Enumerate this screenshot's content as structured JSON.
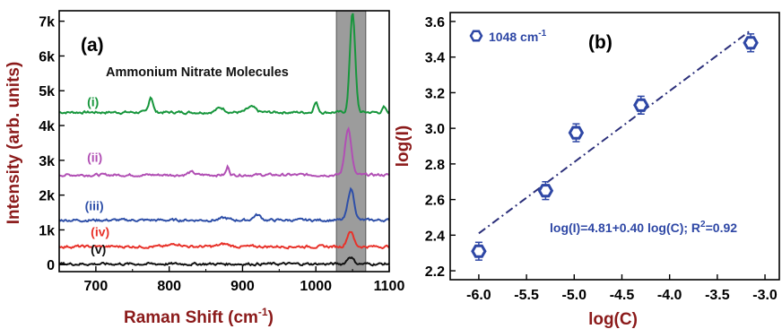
{
  "chart_data": [
    {
      "type": "line",
      "panel_label": "(a)",
      "annotation": "Ammonium Nitrate Molecules",
      "xlabel": "Raman Shift (cm",
      "xlabel_sup": "-1",
      "xlabel_close": ")",
      "ylabel": "Intensity (arb. units)",
      "xlim": [
        650,
        1100
      ],
      "ylim": [
        -200,
        7300
      ],
      "xticks": [
        700,
        800,
        900,
        1000,
        1100
      ],
      "yticks": [
        {
          "value": 0,
          "label": "0"
        },
        {
          "value": 1000,
          "label": "1k"
        },
        {
          "value": 2000,
          "label": "2k"
        },
        {
          "value": 3000,
          "label": "3k"
        },
        {
          "value": 4000,
          "label": "4k"
        },
        {
          "value": 5000,
          "label": "5k"
        },
        {
          "value": 6000,
          "label": "6k"
        },
        {
          "value": 7000,
          "label": "7k"
        }
      ],
      "highlight_band": {
        "x": [
          1028,
          1068
        ],
        "color": "#9c9c9c"
      },
      "colors": {
        "axis_label": "#8b1a1a"
      },
      "series": [
        {
          "label": "(i)",
          "label_pos": {
            "x": 688,
            "y": 4550
          },
          "color": "#17963c",
          "baseline": 4380,
          "peaks": [
            {
              "x": 1050,
              "h": 2900,
              "w": 5
            },
            {
              "x": 775,
              "h": 450,
              "w": 4
            },
            {
              "x": 1000,
              "h": 280,
              "w": 4
            },
            {
              "x": 870,
              "h": 130,
              "w": 8
            },
            {
              "x": 912,
              "h": 150,
              "w": 8
            },
            {
              "x": 1093,
              "h": 140,
              "w": 3
            }
          ]
        },
        {
          "label": "(ii)",
          "label_pos": {
            "x": 688,
            "y": 2960
          },
          "color": "#b14fb4",
          "baseline": 2580,
          "peaks": [
            {
              "x": 1044,
              "h": 1350,
              "w": 6
            },
            {
              "x": 880,
              "h": 230,
              "w": 3
            },
            {
              "x": 830,
              "h": 80,
              "w": 6
            }
          ]
        },
        {
          "label": "(iii)",
          "label_pos": {
            "x": 685,
            "y": 1560
          },
          "color": "#2e4fa8",
          "baseline": 1280,
          "peaks": [
            {
              "x": 1048,
              "h": 900,
              "w": 6
            },
            {
              "x": 920,
              "h": 150,
              "w": 7
            },
            {
              "x": 875,
              "h": 60,
              "w": 8
            }
          ]
        },
        {
          "label": "(iv)",
          "label_pos": {
            "x": 693,
            "y": 820
          },
          "color": "#e8322a",
          "baseline": 520,
          "peaks": [
            {
              "x": 1047,
              "h": 450,
              "w": 6
            },
            {
              "x": 810,
              "h": 80,
              "w": 10
            },
            {
              "x": 875,
              "h": 70,
              "w": 10
            }
          ]
        },
        {
          "label": "(v)",
          "label_pos": {
            "x": 693,
            "y": 320
          },
          "color": "#111111",
          "baseline": 20,
          "peaks": [
            {
              "x": 1047,
              "h": 210,
              "w": 6
            }
          ]
        }
      ]
    },
    {
      "type": "scatter",
      "panel_label": "(b)",
      "xlabel": "log(C)",
      "ylabel": "log(I)",
      "xlim": [
        -6.3,
        -2.85
      ],
      "ylim": [
        2.15,
        3.65
      ],
      "xticks": [
        -6.0,
        -5.5,
        -5.0,
        -4.5,
        -4.0,
        -3.5,
        -3.0
      ],
      "yticks": [
        2.2,
        2.4,
        2.6,
        2.8,
        3.0,
        3.2,
        3.4,
        3.6
      ],
      "legend": {
        "entry": "1048 cm",
        "entry_sup": "-1",
        "placement": "top-left"
      },
      "points": [
        {
          "x": -6.0,
          "y": 2.31,
          "err": 0.05
        },
        {
          "x": -5.3,
          "y": 2.65,
          "err": 0.05
        },
        {
          "x": -4.98,
          "y": 2.975,
          "err": 0.05
        },
        {
          "x": -4.3,
          "y": 3.13,
          "err": 0.05
        },
        {
          "x": -3.15,
          "y": 3.48,
          "err": 0.05
        }
      ],
      "fit": {
        "intercept": 4.81,
        "slope": 0.4,
        "x_range": [
          -6.0,
          -3.15
        ]
      },
      "fit_text": "log(I)=4.81+0.40 log(C); R",
      "fit_text_sup": "2",
      "fit_text_tail": "=0.92",
      "colors": {
        "marker": "#2e47a5",
        "fit": "#2b2f7a"
      }
    }
  ]
}
